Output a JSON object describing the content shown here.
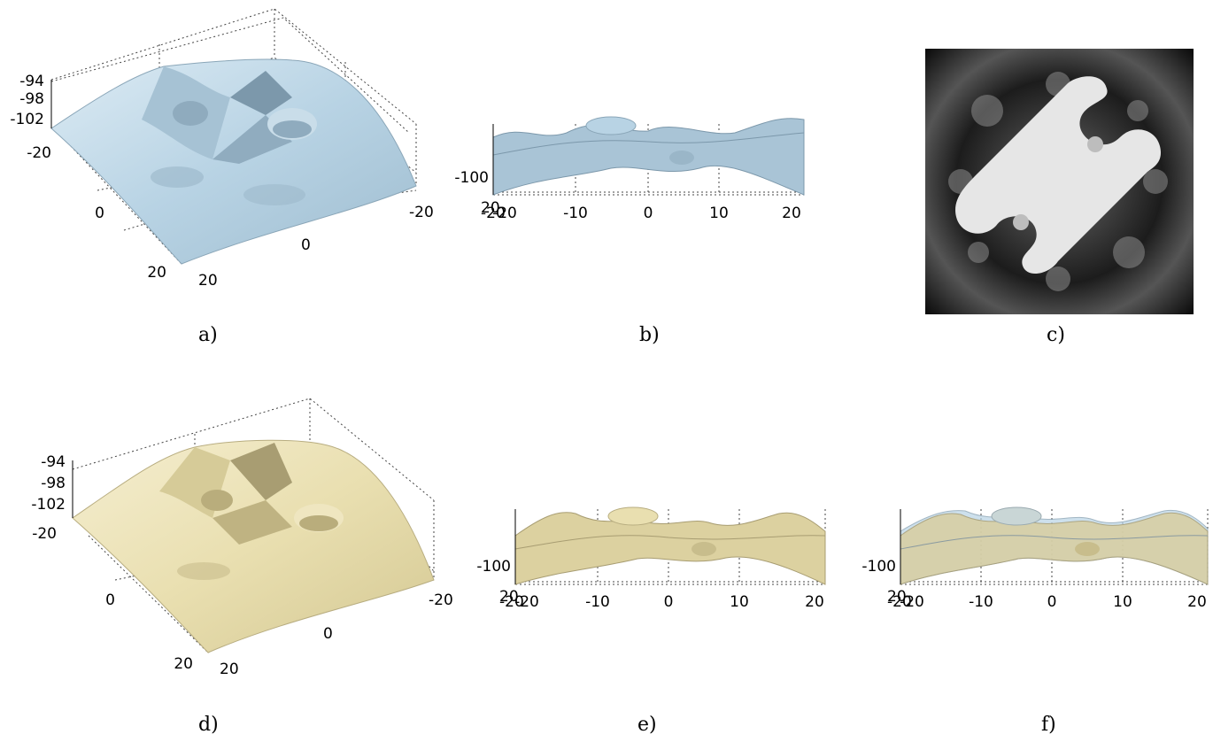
{
  "colors": {
    "blue_surface": "#b8d3e4",
    "blue_shadow": "#7c98ab",
    "blue_highlight": "#dcebf4",
    "yellow_surface": "#e9dfb0",
    "yellow_shadow": "#a89d72",
    "yellow_highlight": "#f5eed0"
  },
  "panels": {
    "a": {
      "caption": "a)",
      "z_ticks": [
        "-94",
        "-98",
        "-102"
      ],
      "y_ticks": [
        "-20",
        "0",
        "20"
      ],
      "x_ticks": [
        "20",
        "0",
        "-20"
      ]
    },
    "b": {
      "caption": "b)",
      "z_tick": "-100",
      "corner_ticks": [
        "20",
        "-20"
      ],
      "x_ticks": [
        "-20",
        "-10",
        "0",
        "10",
        "20"
      ]
    },
    "c": {
      "caption": "c)"
    },
    "d": {
      "caption": "d)",
      "z_ticks": [
        "-94",
        "-98",
        "-102"
      ],
      "y_ticks": [
        "-20",
        "0",
        "20"
      ],
      "x_ticks": [
        "20",
        "0",
        "-20"
      ]
    },
    "e": {
      "caption": "e)",
      "z_tick": "-100",
      "corner_ticks": [
        "20",
        "-20"
      ],
      "x_ticks": [
        "-20",
        "-10",
        "0",
        "10",
        "20"
      ]
    },
    "f": {
      "caption": "f)",
      "z_tick": "-100",
      "corner_ticks": [
        "20",
        "-20"
      ],
      "x_ticks": [
        "-20",
        "-10",
        "0",
        "10",
        "20"
      ]
    }
  }
}
